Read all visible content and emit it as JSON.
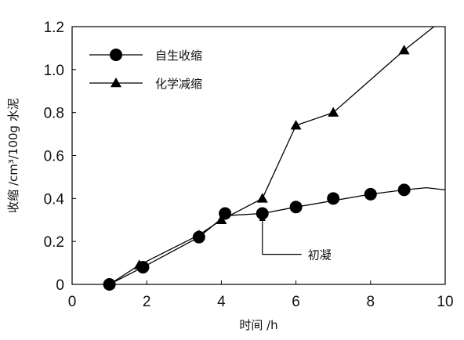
{
  "chart_data": {
    "type": "line",
    "xlabel": "时间 /h",
    "ylabel": "收缩 /cm³/100g 水泥",
    "xlim": [
      0,
      10
    ],
    "ylim": [
      0,
      1.2
    ],
    "x_ticks": [
      0,
      2,
      4,
      6,
      8,
      10
    ],
    "y_ticks": [
      0,
      0.2,
      0.4,
      0.6,
      0.8,
      1.0,
      1.2
    ],
    "y_tick_labels": [
      "0",
      "0.2",
      "0.4",
      "0.6",
      "0.8",
      "1.0",
      "1.2"
    ],
    "grid": false,
    "legend": "top-left",
    "series": [
      {
        "name": "自生收缩",
        "marker": "circle",
        "color": "#000000",
        "x": [
          1.0,
          1.9,
          3.4,
          4.1,
          5.1,
          6.0,
          7.0,
          8.0,
          8.9
        ],
        "y": [
          0.0,
          0.08,
          0.22,
          0.33,
          0.33,
          0.36,
          0.4,
          0.42,
          0.44
        ],
        "curve_x": [
          1.0,
          1.9,
          3.4,
          4.1,
          5.1,
          6.0,
          7.0,
          8.0,
          8.9,
          9.5,
          10.0
        ],
        "curve_y": [
          0.0,
          0.08,
          0.22,
          0.32,
          0.33,
          0.36,
          0.39,
          0.42,
          0.44,
          0.45,
          0.44
        ]
      },
      {
        "name": "化学减缩",
        "marker": "triangle",
        "color": "#000000",
        "x": [
          1.0,
          1.8,
          3.4,
          4.0,
          5.1,
          6.0,
          7.0,
          8.9
        ],
        "y": [
          0.0,
          0.09,
          0.23,
          0.3,
          0.4,
          0.74,
          0.8,
          1.09
        ],
        "curve_x": [
          1.0,
          1.8,
          3.4,
          4.0,
          5.1,
          6.0,
          7.0,
          8.9,
          9.7
        ],
        "curve_y": [
          0.0,
          0.09,
          0.23,
          0.3,
          0.4,
          0.74,
          0.8,
          1.09,
          1.2
        ]
      }
    ],
    "annotations": [
      {
        "text": "初凝",
        "x": 5.1,
        "y": 0.31
      }
    ]
  }
}
